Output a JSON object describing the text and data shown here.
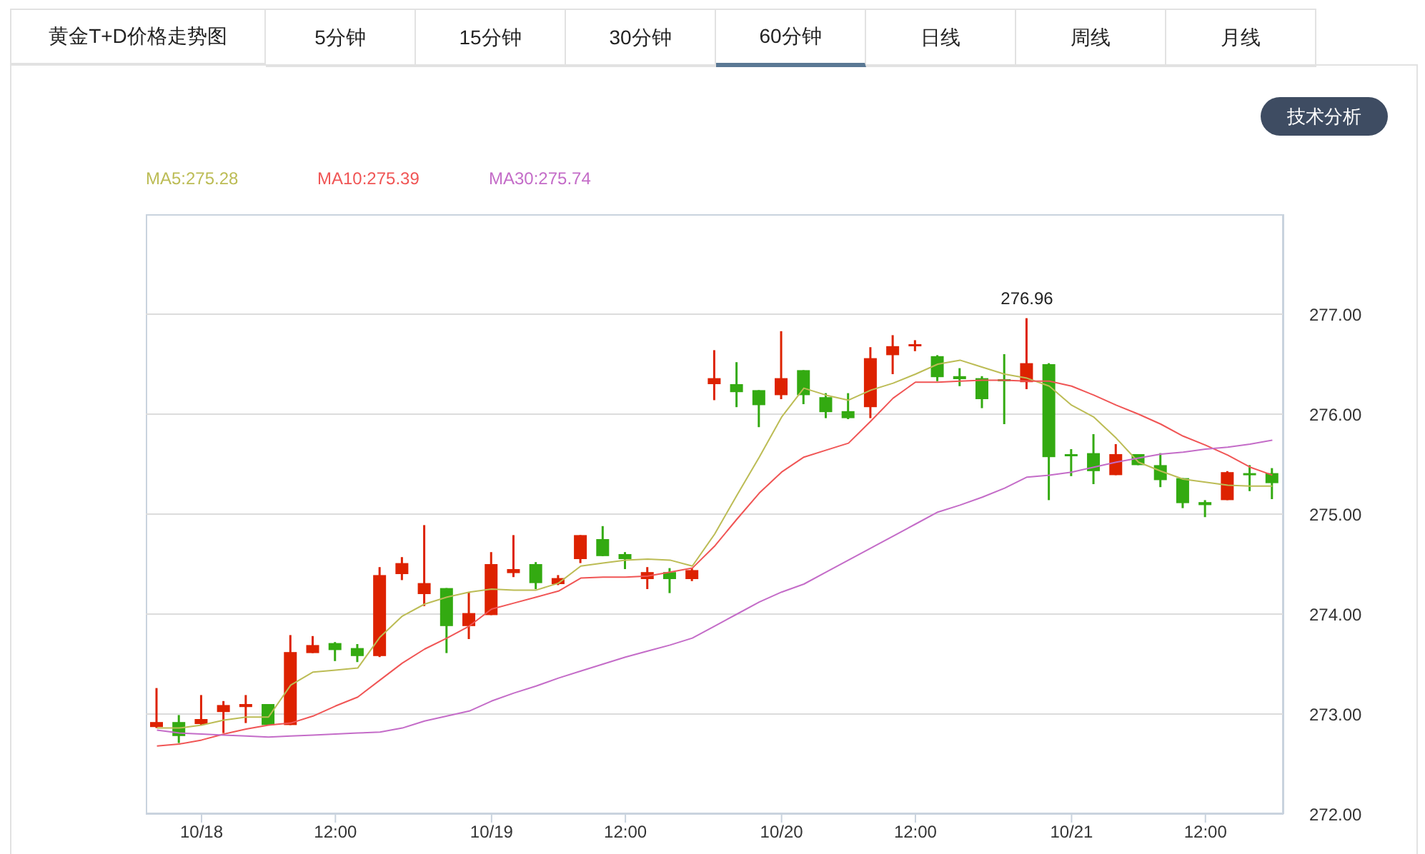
{
  "chart_data": {
    "type": "candlestick",
    "title": "黄金T+D价格走势图",
    "categories": [
      null,
      null,
      "10/18",
      null,
      null,
      null,
      null,
      null,
      "12:00",
      null,
      null,
      null,
      null,
      null,
      null,
      "10/19",
      null,
      null,
      null,
      null,
      null,
      "12:00",
      null,
      null,
      null,
      null,
      null,
      null,
      "10/20",
      null,
      null,
      null,
      null,
      null,
      "12:00",
      null,
      null,
      null,
      null,
      null,
      null,
      "10/21",
      null,
      null,
      null,
      null,
      null,
      "12:00",
      null,
      null,
      null
    ],
    "ohlc": [
      [
        272.87,
        273.26,
        272.86,
        272.92
      ],
      [
        272.92,
        272.99,
        272.71,
        272.78
      ],
      [
        272.9,
        273.19,
        272.89,
        272.95
      ],
      [
        273.02,
        273.13,
        272.81,
        273.09
      ],
      [
        273.07,
        273.19,
        272.91,
        273.1
      ],
      [
        273.1,
        273.1,
        272.89,
        272.89
      ],
      [
        272.89,
        273.79,
        272.89,
        273.62
      ],
      [
        273.61,
        273.78,
        273.61,
        273.69
      ],
      [
        273.71,
        273.72,
        273.53,
        273.64
      ],
      [
        273.66,
        273.7,
        273.52,
        273.58
      ],
      [
        273.58,
        274.47,
        273.57,
        274.39
      ],
      [
        274.4,
        274.57,
        274.34,
        274.51
      ],
      [
        274.2,
        274.89,
        274.08,
        274.31
      ],
      [
        274.26,
        274.26,
        273.61,
        273.88
      ],
      [
        273.88,
        274.22,
        273.75,
        274.01
      ],
      [
        273.99,
        274.62,
        273.99,
        274.5
      ],
      [
        274.41,
        274.79,
        274.37,
        274.45
      ],
      [
        274.5,
        274.52,
        274.25,
        274.31
      ],
      [
        274.3,
        274.39,
        274.29,
        274.36
      ],
      [
        274.55,
        274.79,
        274.51,
        274.79
      ],
      [
        274.75,
        274.88,
        274.58,
        274.58
      ],
      [
        274.6,
        274.62,
        274.45,
        274.55
      ],
      [
        274.35,
        274.47,
        274.25,
        274.42
      ],
      [
        274.42,
        274.46,
        274.21,
        274.35
      ],
      [
        274.35,
        274.46,
        274.33,
        274.44
      ],
      [
        276.3,
        276.64,
        276.14,
        276.36
      ],
      [
        276.3,
        276.52,
        276.07,
        276.22
      ],
      [
        276.24,
        276.24,
        275.87,
        276.09
      ],
      [
        276.19,
        276.83,
        276.15,
        276.36
      ],
      [
        276.44,
        276.44,
        276.1,
        276.19
      ],
      [
        276.17,
        276.21,
        275.96,
        276.02
      ],
      [
        276.03,
        276.21,
        275.95,
        275.96
      ],
      [
        276.07,
        276.67,
        275.96,
        276.56
      ],
      [
        276.59,
        276.79,
        276.4,
        276.68
      ],
      [
        276.68,
        276.74,
        276.63,
        276.7
      ],
      [
        276.58,
        276.59,
        276.33,
        276.37
      ],
      [
        276.38,
        276.46,
        276.28,
        276.35
      ],
      [
        276.36,
        276.38,
        276.06,
        276.15
      ],
      [
        276.35,
        276.6,
        275.9,
        276.33
      ],
      [
        276.32,
        276.96,
        276.25,
        276.51
      ],
      [
        276.5,
        276.51,
        275.14,
        275.57
      ],
      [
        275.6,
        275.65,
        275.38,
        275.58
      ],
      [
        275.61,
        275.8,
        275.3,
        275.43
      ],
      [
        275.39,
        275.7,
        275.39,
        275.6
      ],
      [
        275.6,
        275.6,
        275.49,
        275.49
      ],
      [
        275.49,
        275.61,
        275.27,
        275.34
      ],
      [
        275.36,
        275.36,
        275.06,
        275.11
      ],
      [
        275.12,
        275.14,
        274.97,
        275.09
      ],
      [
        275.14,
        275.43,
        275.14,
        275.42
      ],
      [
        275.41,
        275.49,
        275.23,
        275.39
      ],
      [
        275.41,
        275.46,
        275.15,
        275.31
      ]
    ],
    "colors": [
      "#dd2200",
      "#33aa11",
      "#dd2200",
      "#dd2200",
      "#dd2200",
      "#33aa11",
      "#dd2200",
      "#dd2200",
      "#33aa11",
      "#33aa11",
      "#dd2200",
      "#dd2200",
      "#dd2200",
      "#33aa11",
      "#dd2200",
      "#dd2200",
      "#dd2200",
      "#33aa11",
      "#dd2200",
      "#dd2200",
      "#33aa11",
      "#33aa11",
      "#dd2200",
      "#33aa11",
      "#dd2200",
      "#dd2200",
      "#33aa11",
      "#33aa11",
      "#dd2200",
      "#33aa11",
      "#33aa11",
      "#33aa11",
      "#dd2200",
      "#dd2200",
      "#dd2200",
      "#33aa11",
      "#33aa11",
      "#33aa11",
      "#33aa11",
      "#dd2200",
      "#33aa11",
      "#33aa11",
      "#33aa11",
      "#dd2200",
      "#33aa11",
      "#33aa11",
      "#33aa11",
      "#33aa11",
      "#dd2200",
      "#33aa11",
      "#33aa11"
    ],
    "series": [
      {
        "name": "MA5:275.28",
        "type": "line",
        "color": "#bcbc55",
        "values": [
          272.86,
          272.86,
          272.89,
          272.94,
          272.97,
          272.97,
          273.29,
          273.42,
          273.44,
          273.46,
          273.77,
          273.98,
          274.1,
          274.17,
          274.22,
          274.25,
          274.24,
          274.24,
          274.31,
          274.48,
          274.51,
          274.54,
          274.55,
          274.54,
          274.48,
          274.8,
          275.19,
          275.57,
          275.97,
          276.26,
          276.19,
          276.14,
          276.24,
          276.31,
          276.4,
          276.5,
          276.54,
          276.47,
          276.4,
          276.36,
          276.28,
          276.09,
          275.97,
          275.76,
          275.52,
          275.43,
          275.35,
          275.32,
          275.29,
          275.28,
          275.28
        ]
      },
      {
        "name": "MA10:275.39",
        "type": "line",
        "color": "#f05555",
        "values": [
          272.68,
          272.7,
          272.74,
          272.8,
          272.85,
          272.89,
          272.91,
          272.98,
          273.08,
          273.17,
          273.34,
          273.51,
          273.65,
          273.76,
          273.88,
          274.05,
          274.11,
          274.17,
          274.23,
          274.36,
          274.37,
          274.37,
          274.38,
          274.42,
          274.46,
          274.68,
          274.95,
          275.21,
          275.42,
          275.57,
          275.64,
          275.71,
          275.93,
          276.16,
          276.32,
          276.32,
          276.33,
          276.34,
          276.34,
          276.33,
          276.33,
          276.28,
          276.19,
          276.09,
          276.0,
          275.9,
          275.78,
          275.69,
          275.59,
          275.47,
          275.39
        ]
      },
      {
        "name": "MA30:275.74",
        "type": "line",
        "color": "#c46cc8",
        "values": [
          272.84,
          272.81,
          272.8,
          272.79,
          272.78,
          272.77,
          272.78,
          272.79,
          272.8,
          272.81,
          272.82,
          272.86,
          272.93,
          272.98,
          273.03,
          273.13,
          273.21,
          273.28,
          273.36,
          273.43,
          273.5,
          273.57,
          273.63,
          273.69,
          273.76,
          273.88,
          274.0,
          274.12,
          274.22,
          274.3,
          274.42,
          274.54,
          274.66,
          274.78,
          274.9,
          275.02,
          275.09,
          275.17,
          275.26,
          275.37,
          275.39,
          275.42,
          275.47,
          275.52,
          275.56,
          275.6,
          275.62,
          275.65,
          275.67,
          275.7,
          275.74
        ]
      }
    ],
    "ylim": [
      272,
      278
    ],
    "yticks": [
      {
        "value": 272,
        "label": "272.00"
      },
      {
        "value": 273,
        "label": "273.00"
      },
      {
        "value": 274,
        "label": "274.00"
      },
      {
        "value": 275,
        "label": "275.00"
      },
      {
        "value": 276,
        "label": "276.00"
      },
      {
        "value": 277,
        "label": "277.00"
      }
    ],
    "grid": "y",
    "legend": "top left",
    "annotations": [
      "5分钟",
      "15分钟",
      "30分钟",
      "60分钟",
      "日线",
      "周线",
      "月线",
      "技术分析",
      {
        "text": "276.96",
        "y": 276.96
      }
    ]
  }
}
